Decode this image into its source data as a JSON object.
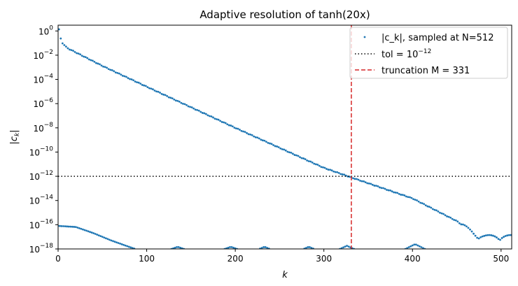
{
  "chart_data": {
    "type": "scatter",
    "title": "Adaptive resolution of tanh(20x)",
    "xlabel": "k",
    "ylabel": "|c_k|",
    "xlim": [
      0,
      512
    ],
    "ylim": [
      1e-18,
      3
    ],
    "yscale": "log",
    "xticks": [
      0,
      100,
      200,
      300,
      400,
      500
    ],
    "yticks": [
      {
        "mantissa": "10",
        "exponent": "0",
        "value": 1
      },
      {
        "mantissa": "10",
        "exponent": "−2",
        "value": 0.01
      },
      {
        "mantissa": "10",
        "exponent": "−4",
        "value": 0.0001
      },
      {
        "mantissa": "10",
        "exponent": "−6",
        "value": 1e-06
      },
      {
        "mantissa": "10",
        "exponent": "−8",
        "value": 1e-08
      },
      {
        "mantissa": "10",
        "exponent": "−10",
        "value": 1e-10
      },
      {
        "mantissa": "10",
        "exponent": "−12",
        "value": 1e-12
      },
      {
        "mantissa": "10",
        "exponent": "−14",
        "value": 1e-14
      },
      {
        "mantissa": "10",
        "exponent": "−16",
        "value": 1e-16
      },
      {
        "mantissa": "10",
        "exponent": "−18",
        "value": 1e-18
      }
    ],
    "series": [
      {
        "name": "|c_k|, sampled at N=512",
        "color": "#1f77b4",
        "marker": "point",
        "description_of_values": {
          "odd_k": [
            [
              1,
              1.3
            ],
            [
              2,
              0.35
            ],
            [
              5,
              0.1
            ],
            [
              10,
              0.04
            ],
            [
              50,
              0.0013
            ],
            [
              100,
              2.5e-05
            ],
            [
              200,
              1e-08
            ],
            [
              300,
              5e-12
            ],
            [
              331,
              8e-13
            ],
            [
              400,
              1.5e-14
            ],
            [
              450,
              2e-16
            ],
            [
              460,
              6e-17
            ],
            [
              470,
              1.5e-17
            ],
            [
              480,
              1e-17
            ],
            [
              490,
              1e-17
            ],
            [
              500,
              1e-17
            ],
            [
              511,
              1e-17
            ]
          ],
          "even_k": [
            [
              0,
              8e-17
            ],
            [
              20,
              6.5e-17
            ],
            [
              40,
              2e-17
            ],
            [
              60,
              5e-18
            ],
            [
              80,
              1.5e-18
            ],
            [
              87,
              1e-18
            ],
            [
              135,
              1.5e-18
            ],
            [
              195,
              1.5e-18
            ],
            [
              233,
              1.5e-18
            ],
            [
              283,
              1.5e-18
            ],
            [
              325,
              1.8e-18
            ],
            [
              403,
              2.5e-18
            ]
          ]
        }
      },
      {
        "name": "tol",
        "legend_label": "tol",
        "legend_suffix": " = 10",
        "legend_exponent": "−12",
        "color": "#000000",
        "style": "dotted",
        "y": 1e-12
      },
      {
        "name": "truncation M = 331",
        "color": "#d62728",
        "style": "dashed",
        "x": 331
      }
    ],
    "legend_position": "top-right",
    "grid": false
  }
}
